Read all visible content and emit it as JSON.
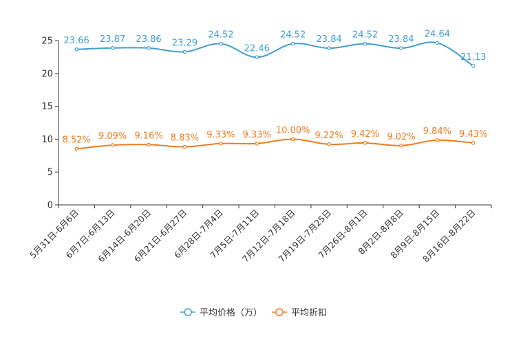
{
  "chart_data": {
    "type": "line",
    "title": "",
    "xlabel": "",
    "ylabel": "",
    "ylim": [
      0,
      25
    ],
    "yticks": [
      0,
      5,
      10,
      15,
      20,
      25
    ],
    "grid": false,
    "legend_position": "bottom",
    "categories": [
      "5月31日-6月6日",
      "6月7日-6月13日",
      "6月14日-6月20日",
      "6月21日-6月27日",
      "6月28日-7月4日",
      "7月5日-7月11日",
      "7月12日-7月18日",
      "7月19日-7月25日",
      "7月26日-8月1日",
      "8月2日-8月8日",
      "8月9日-8月15日",
      "8月16日-8月22日"
    ],
    "series": [
      {
        "name": "平均价格（万）",
        "color": "#3f9fd0",
        "values": [
          23.66,
          23.87,
          23.86,
          23.29,
          24.52,
          22.46,
          24.52,
          23.84,
          24.52,
          23.84,
          24.64,
          21.13
        ],
        "labels": [
          "23.66",
          "23.87",
          "23.86",
          "23.29",
          "24.52",
          "22.46",
          "24.52",
          "23.84",
          "24.52",
          "23.84",
          "24.64",
          "21.13"
        ]
      },
      {
        "name": "平均折扣",
        "color": "#f07c1e",
        "values": [
          8.52,
          9.09,
          9.16,
          8.83,
          9.33,
          9.33,
          10.0,
          9.22,
          9.42,
          9.02,
          9.84,
          9.43
        ],
        "labels": [
          "8.52%",
          "9.09%",
          "9.16%",
          "8.83%",
          "9.33%",
          "9.33%",
          "10.00%",
          "9.22%",
          "9.42%",
          "9.02%",
          "9.84%",
          "9.43%"
        ]
      }
    ]
  }
}
